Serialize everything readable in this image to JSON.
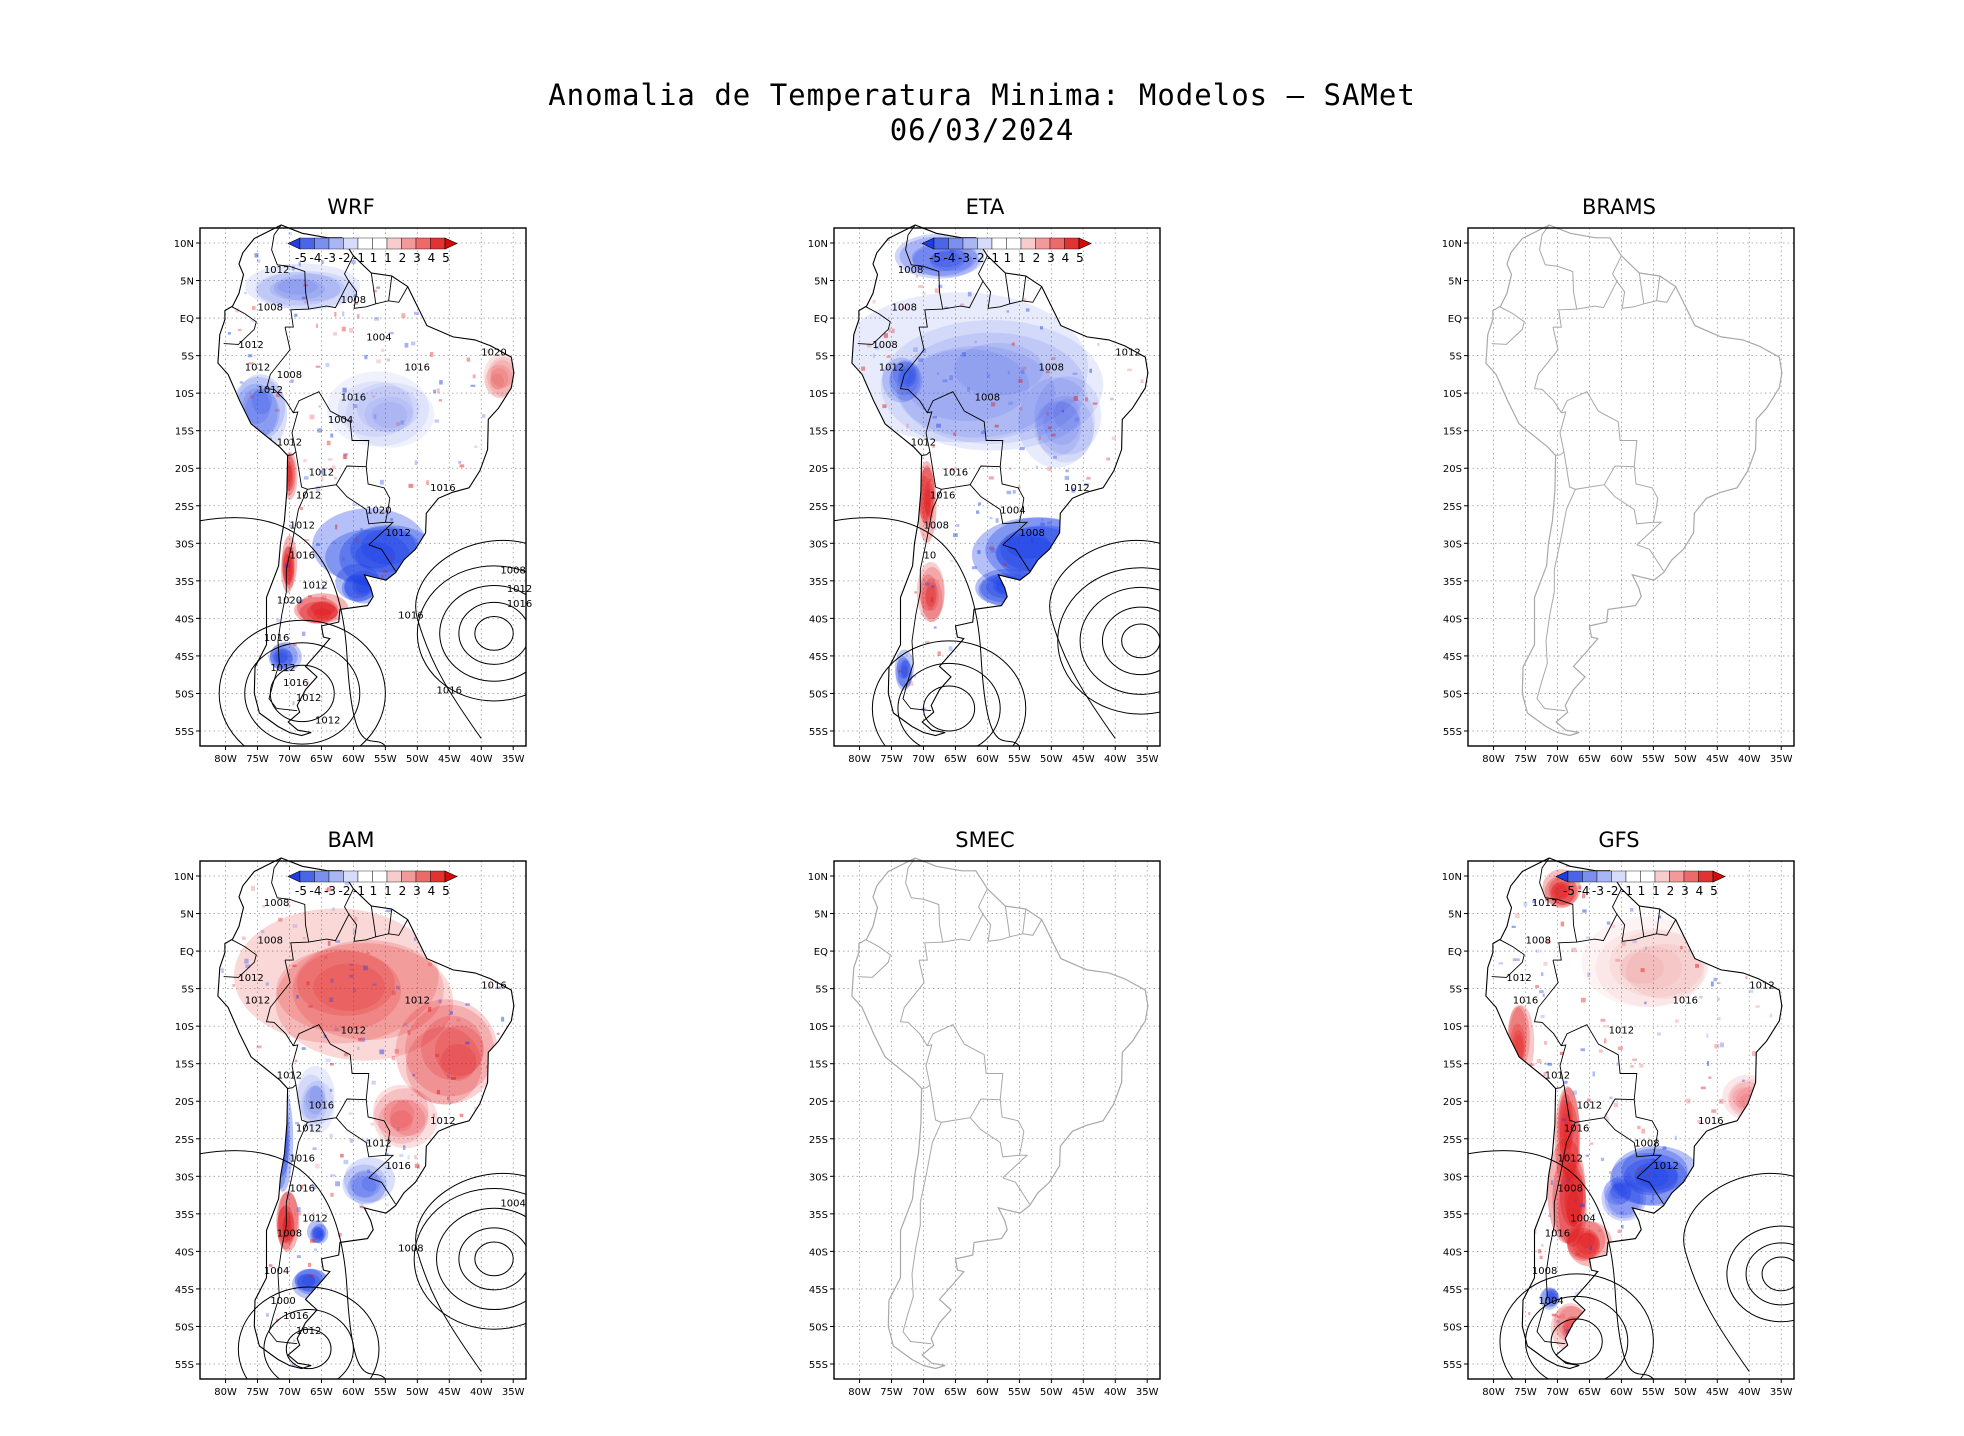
{
  "title": {
    "line1": "Anomalia de Temperatura Minima: Modelos — SAMet",
    "line2": "06/03/2024"
  },
  "axes": {
    "lat_labels": [
      "10N",
      "5N",
      "EQ",
      "5S",
      "10S",
      "15S",
      "20S",
      "25S",
      "30S",
      "35S",
      "40S",
      "45S",
      "50S",
      "55S"
    ],
    "lon_labels": [
      "80W",
      "75W",
      "70W",
      "65W",
      "60W",
      "55W",
      "50W",
      "45W",
      "40W",
      "35W"
    ]
  },
  "colorbar": {
    "labels": [
      "-5",
      "-4",
      "-3",
      "-2",
      "-1",
      "1",
      "1",
      "2",
      "3",
      "4",
      "5"
    ],
    "colors": [
      "#1f3de0",
      "#4a66e6",
      "#7b8fee",
      "#a9b6f4",
      "#d6dcfa",
      "#ffffff",
      "#ffffff",
      "#f7cccc",
      "#f29a9a",
      "#ec6a6a",
      "#e23333",
      "#d60a0a"
    ]
  },
  "colors": {
    "cold": "#1b3fe6",
    "warm": "#e0171a",
    "outline_gray": "#a8a8a8",
    "grid": "#9a9a9a"
  },
  "panels": [
    {
      "id": "wrf",
      "name": "WRF",
      "has_data": true,
      "isobar_labels": [
        "1012",
        "1008",
        "1012",
        "1012",
        "1016",
        "1016",
        "1020",
        "1012",
        "1012",
        "1012",
        "1012",
        "1020",
        "1016",
        "1012",
        "1016",
        "1012",
        "1020",
        "1016",
        "1012",
        "1016",
        "1012",
        "1016",
        "1008",
        "1012",
        "1016",
        "1016",
        "1012",
        "1008",
        "1004",
        "1012",
        "1008",
        "1004"
      ]
    },
    {
      "id": "eta",
      "name": "ETA",
      "has_data": true,
      "isobar_labels": [
        "1008",
        "1008",
        "1008",
        "1012",
        "1008",
        "1008",
        "1012",
        "1012",
        "1016",
        "1016",
        "1008",
        "1004",
        "1012",
        "1008",
        "10"
      ]
    },
    {
      "id": "brams",
      "name": "BRAMS",
      "has_data": false,
      "isobar_labels": []
    },
    {
      "id": "bam",
      "name": "BAM",
      "has_data": true,
      "isobar_labels": [
        "1008",
        "1008",
        "1012",
        "1012",
        "1012",
        "1012",
        "1016",
        "1012",
        "1016",
        "1012",
        "1016",
        "1012",
        "1012",
        "1016",
        "1016",
        "1012",
        "1008",
        "1004",
        "1000",
        "1016",
        "1012",
        "1008",
        "1004"
      ]
    },
    {
      "id": "smec",
      "name": "SMEC",
      "has_data": false,
      "isobar_labels": []
    },
    {
      "id": "gfs",
      "name": "GFS",
      "has_data": true,
      "isobar_labels": [
        "1012",
        "1008",
        "1012",
        "1016",
        "1012",
        "1016",
        "1012",
        "1012",
        "1012",
        "1016",
        "1012",
        "1008",
        "1016",
        "1012",
        "1008",
        "1004",
        "1016",
        "1008",
        "1004"
      ]
    }
  ]
}
